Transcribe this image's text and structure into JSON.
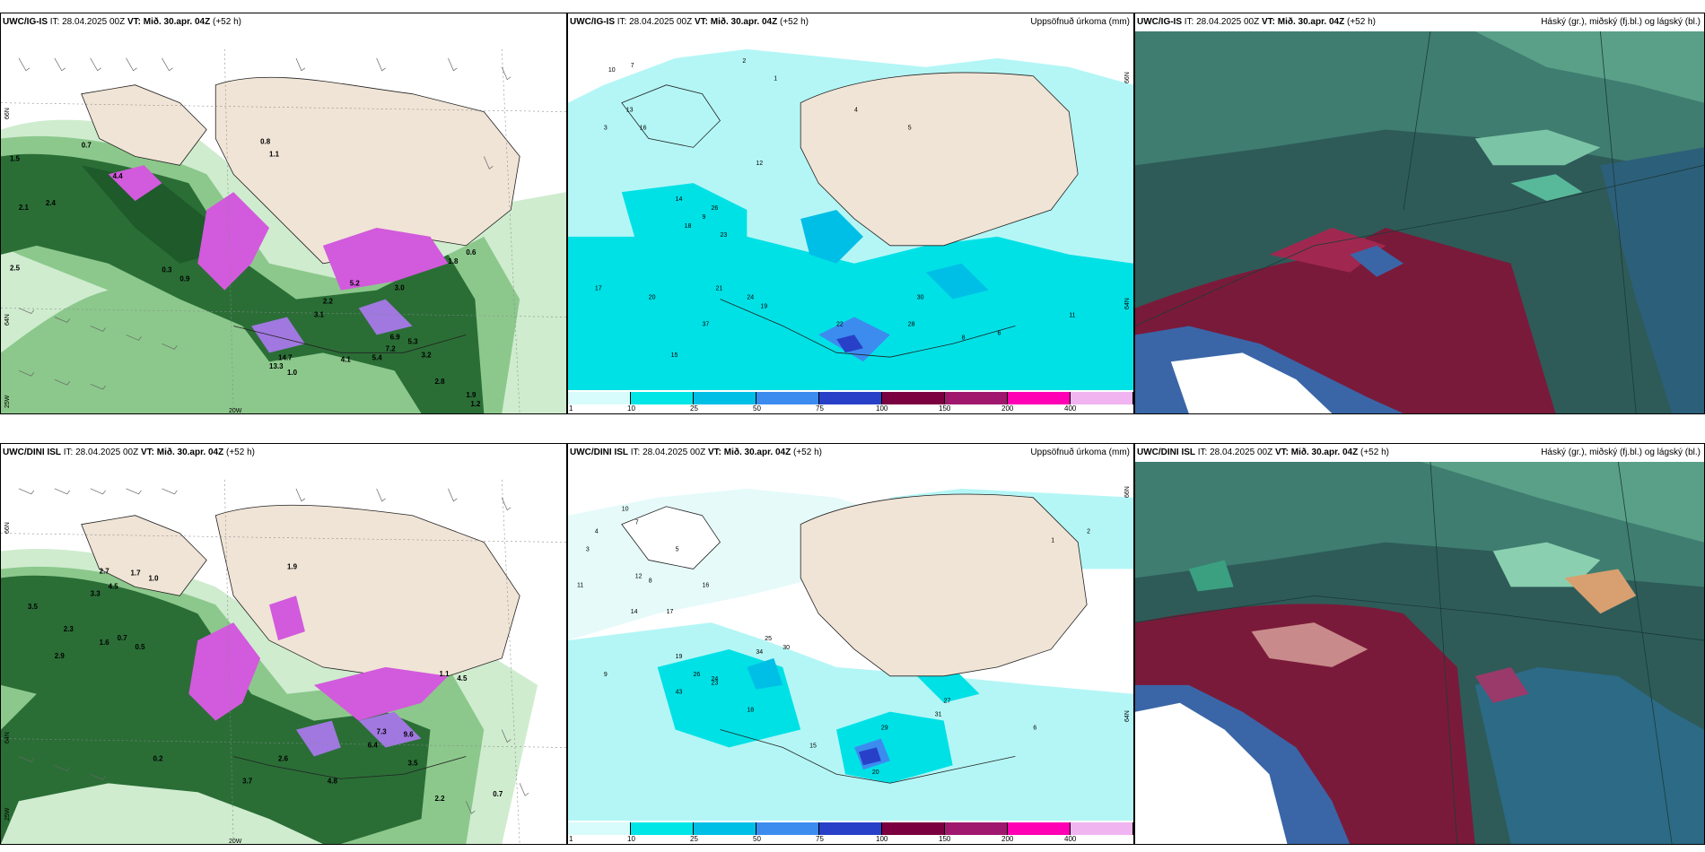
{
  "panels": [
    {
      "id": "p1",
      "model": "UWC/IG-IS",
      "it_label": "IT:",
      "it": "28.04.2025 00Z",
      "vt_label": "VT:",
      "vt": "Mið. 30.apr. 04Z",
      "lead": "(+52 h)",
      "title_right": "",
      "coords": {
        "lat_top": "66N",
        "lat_bottom": "64N",
        "lon_left": "25W",
        "lon_bottom": "20W"
      }
    },
    {
      "id": "p2",
      "model": "UWC/IG-IS",
      "it_label": "IT:",
      "it": "28.04.2025 00Z",
      "vt_label": "VT:",
      "vt": "Mið. 30.apr. 04Z",
      "lead": "(+52 h)",
      "title_right": "Uppsöfnuð úrkoma (mm)",
      "coords": {
        "lat_top": "66N",
        "lat_bottom": "64N"
      }
    },
    {
      "id": "p3",
      "model": "UWC/IG-IS",
      "it_label": "IT:",
      "it": "28.04.2025 00Z",
      "vt_label": "VT:",
      "vt": "Mið. 30.apr. 04Z",
      "lead": "(+52 h)",
      "title_right": "Háský (gr.), miðský (fj.bl.) og lágský (bl.)"
    },
    {
      "id": "p4",
      "model": "UWC/DINI ISL",
      "it_label": "IT:",
      "it": "28.04.2025 00Z",
      "vt_label": "VT:",
      "vt": "Mið. 30.apr. 04Z",
      "lead": "(+52 h)",
      "title_right": "",
      "coords": {
        "lat_top": "66N",
        "lat_bottom": "64N",
        "lon_left": "25W",
        "lon_bottom": "20W"
      }
    },
    {
      "id": "p5",
      "model": "UWC/DINI ISL",
      "it_label": "IT:",
      "it": "28.04.2025 00Z",
      "vt_label": "VT:",
      "vt": "Mið. 30.apr. 04Z",
      "lead": "(+52 h)",
      "title_right": "Uppsöfnuð úrkoma (mm)",
      "coords": {
        "lat_top": "66N",
        "lat_bottom": "64N"
      }
    },
    {
      "id": "p6",
      "model": "UWC/DINI ISL",
      "it_label": "IT:",
      "it": "28.04.2025 00Z",
      "vt_label": "VT:",
      "vt": "Mið. 30.apr. 04Z",
      "lead": "(+52 h)",
      "title_right": "Háský (gr.), miðský (fj.bl.) og lágský (bl.)"
    }
  ],
  "colorbar": {
    "labels": [
      "1",
      "10",
      "25",
      "50",
      "75",
      "100",
      "150",
      "200",
      "400"
    ],
    "colors": [
      "#d8fbfb",
      "#00e6e6",
      "#00bfe6",
      "#3c8cf0",
      "#2840c8",
      "#7a0040",
      "#a0186e",
      "#ff00b4",
      "#f0b4f0"
    ]
  },
  "precip_labels": {
    "ig": [
      "10",
      "7",
      "2",
      "1",
      "3",
      "13",
      "16",
      "4",
      "5",
      "14",
      "9",
      "18",
      "26",
      "23",
      "12",
      "21",
      "17",
      "20",
      "37",
      "15",
      "24",
      "19",
      "22",
      "28",
      "30",
      "8",
      "6",
      "11"
    ],
    "dini": [
      "10",
      "7",
      "4",
      "3",
      "12",
      "8",
      "5",
      "16",
      "17",
      "25",
      "34",
      "30",
      "14",
      "19",
      "26",
      "23",
      "43",
      "9",
      "11",
      "18",
      "24",
      "27",
      "31",
      "29",
      "20",
      "6",
      "15",
      "2",
      "1"
    ]
  },
  "snow_labels": {
    "ig": [
      "0.7",
      "0.8",
      "1.1",
      "1.5",
      "2.4",
      "2.1",
      "4.4",
      "0.3",
      "0.9",
      "2.5",
      "5.2",
      "3.0",
      "1.8",
      "2.2",
      "3.1",
      "4.1",
      "5.4",
      "5.3",
      "7.2",
      "6.9",
      "13.3",
      "14.7",
      "3.2",
      "2.8",
      "1.9",
      "0.6",
      "1.0",
      "1.2"
    ],
    "dini": [
      "1.9",
      "2.7",
      "1.7",
      "1.0",
      "3.3",
      "4.5",
      "3.5",
      "2.3",
      "0.5",
      "0.7",
      "1.6",
      "2.6",
      "3.7",
      "4.8",
      "6.4",
      "7.3",
      "9.6",
      "3.5",
      "0.2",
      "2.2",
      "0.7",
      "4.5",
      "1.1",
      "2.9"
    ]
  },
  "colors": {
    "land": "#f0e4d6",
    "ocean_precip": "#b4f6f6",
    "precip_mid": "#00e1e6",
    "snow_pink": "#d25adc",
    "snow_purple": "#a078e0",
    "green_dark": "#1e5a2a",
    "green_mid": "#5aa05a",
    "green_light": "#a8dca8",
    "cloud_teal": "#2e5b58",
    "cloud_green": "#5aa088",
    "cloud_maroon": "#7a1a3a",
    "cloud_blue": "#3a66a8"
  }
}
